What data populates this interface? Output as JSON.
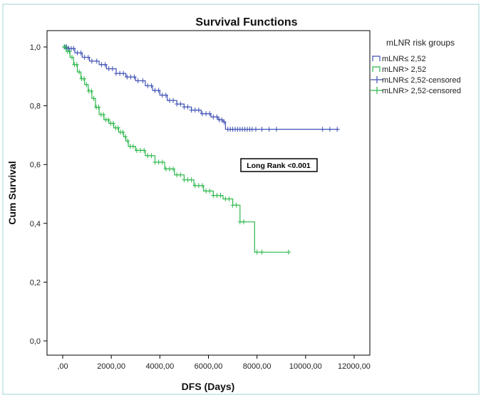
{
  "chart_data": {
    "type": "line",
    "title": "Survival Functions",
    "xlabel": "DFS (Days)",
    "ylabel": "Cum Survival",
    "xlim": [
      0,
      12000
    ],
    "ylim": [
      0,
      1.0
    ],
    "x_ticks": [
      0,
      2000,
      4000,
      6000,
      8000,
      10000,
      12000
    ],
    "x_tick_labels": [
      ",00",
      "2000,00",
      "4000,00",
      "6000,00",
      "8000,00",
      "10000,00",
      "12000,00"
    ],
    "y_ticks": [
      0,
      0.2,
      0.4,
      0.6,
      0.8,
      1.0
    ],
    "y_tick_labels": [
      "0,0",
      "0,2",
      "0,4",
      "0,6",
      "0,8",
      "1,0"
    ],
    "grid": false,
    "legend_title": "mLNR risk groups",
    "legend_position": "outside-right",
    "annotation": "Long Rank <0.001",
    "legend_entries": [
      {
        "label": "mLNR≤ 2,52",
        "color": "#3F51B5",
        "kind": "line"
      },
      {
        "label": "mLNR> 2,52",
        "color": "#2DB84B",
        "kind": "line"
      },
      {
        "label": "mLNR≤ 2,52-censored",
        "color": "#3F51B5",
        "kind": "cross"
      },
      {
        "label": "mLNR> 2,52-censored",
        "color": "#2DB84B",
        "kind": "cross"
      }
    ],
    "series": [
      {
        "name": "mLNR≤ 2,52",
        "color": "#3F51B5",
        "x": [
          0,
          200,
          500,
          800,
          1100,
          1500,
          1800,
          2200,
          2600,
          3000,
          3400,
          3700,
          4000,
          4300,
          4700,
          5000,
          5300,
          5700,
          6100,
          6400,
          6600,
          6700,
          11400
        ],
        "y": [
          1.0,
          0.995,
          0.98,
          0.965,
          0.952,
          0.94,
          0.926,
          0.91,
          0.898,
          0.885,
          0.868,
          0.852,
          0.836,
          0.818,
          0.806,
          0.796,
          0.785,
          0.773,
          0.762,
          0.752,
          0.745,
          0.72,
          0.72
        ],
        "censored_x": [
          80,
          160,
          250,
          350,
          450,
          600,
          750,
          900,
          1050,
          1200,
          1400,
          1600,
          1750,
          1900,
          2050,
          2200,
          2350,
          2500,
          2650,
          2800,
          2950,
          3100,
          3300,
          3500,
          3650,
          3800,
          3950,
          4100,
          4250,
          4400,
          4550,
          4700,
          4850,
          5000,
          5150,
          5300,
          5450,
          5600,
          5750,
          5900,
          6050,
          6200,
          6350,
          6450,
          6550,
          6650,
          6800,
          6900,
          7000,
          7100,
          7200,
          7300,
          7400,
          7500,
          7600,
          7700,
          7800,
          7950,
          8200,
          8500,
          8800,
          10700,
          11000,
          11300
        ]
      },
      {
        "name": "mLNR> 2,52",
        "color": "#2DB84B",
        "x": [
          0,
          150,
          300,
          450,
          600,
          750,
          900,
          1050,
          1200,
          1350,
          1500,
          1700,
          1900,
          2100,
          2300,
          2500,
          2600,
          2700,
          3000,
          3400,
          3800,
          4200,
          4600,
          5000,
          5400,
          5800,
          6200,
          6600,
          7000,
          7300,
          7800,
          7900,
          9300
        ],
        "y": [
          1.0,
          0.985,
          0.965,
          0.94,
          0.915,
          0.892,
          0.872,
          0.85,
          0.825,
          0.795,
          0.77,
          0.752,
          0.74,
          0.725,
          0.71,
          0.695,
          0.68,
          0.662,
          0.648,
          0.63,
          0.608,
          0.585,
          0.565,
          0.548,
          0.528,
          0.51,
          0.495,
          0.483,
          0.462,
          0.405,
          0.405,
          0.302,
          0.302
        ],
        "censored_x": [
          60,
          120,
          200,
          280,
          380,
          480,
          580,
          680,
          780,
          880,
          980,
          1080,
          1180,
          1280,
          1380,
          1480,
          1580,
          1680,
          1780,
          1880,
          1980,
          2080,
          2180,
          2280,
          2380,
          2480,
          2580,
          2680,
          2780,
          2900,
          3050,
          3200,
          3350,
          3500,
          3650,
          3800,
          3950,
          4100,
          4250,
          4400,
          4550,
          4700,
          4850,
          5000,
          5150,
          5300,
          5450,
          5600,
          5750,
          5900,
          6050,
          6200,
          6350,
          6500,
          6700,
          6850,
          7000,
          7150,
          7300,
          7450,
          8000,
          8200,
          9300
        ]
      }
    ]
  }
}
